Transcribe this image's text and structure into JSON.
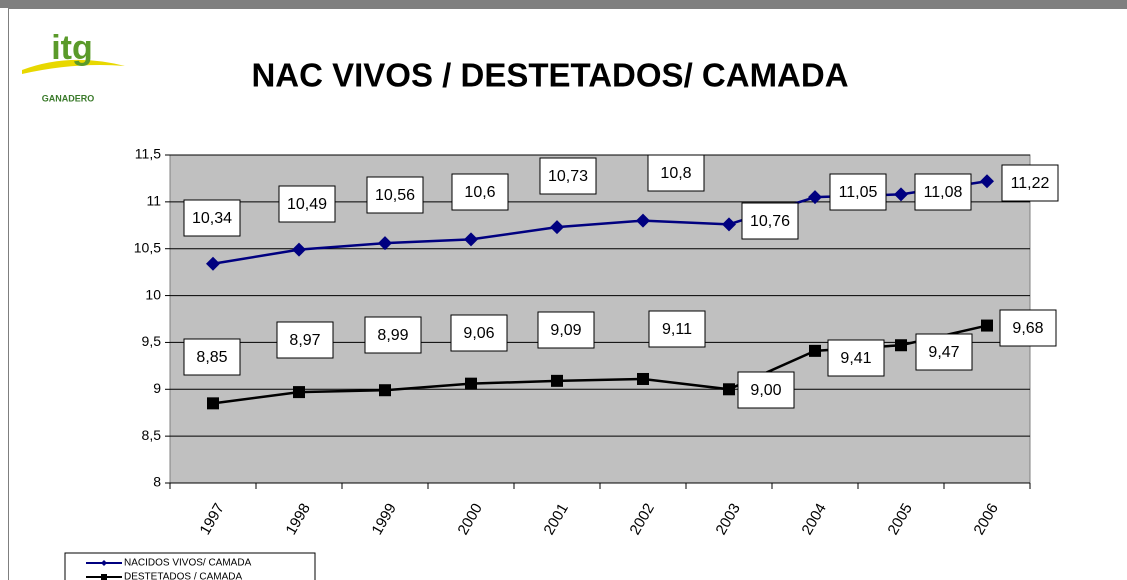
{
  "logo": {
    "text": "itg",
    "subtext": "GANADERO"
  },
  "chart_data": {
    "type": "line",
    "title": "NAC VIVOS / DESTETADOS/ CAMADA",
    "categories": [
      "1997",
      "1998",
      "1999",
      "2000",
      "2001",
      "2002",
      "2003",
      "2004",
      "2005",
      "2006"
    ],
    "series": [
      {
        "name": "NACIDOS VIVOS/ CAMADA",
        "color": "#000080",
        "marker": "diamond",
        "values": [
          10.34,
          10.49,
          10.56,
          10.6,
          10.73,
          10.8,
          10.76,
          11.05,
          11.08,
          11.22
        ],
        "value_labels": [
          "10,34",
          "10,49",
          "10,56",
          "10,6",
          "10,73",
          "10,8",
          "10,76",
          "11,05",
          "11,08",
          "11,22"
        ]
      },
      {
        "name": "DESTETADOS / CAMADA",
        "color": "#000000",
        "marker": "square",
        "values": [
          8.85,
          8.97,
          8.99,
          9.06,
          9.09,
          9.11,
          9.0,
          9.41,
          9.47,
          9.68
        ],
        "value_labels": [
          "8,85",
          "8,97",
          "8,99",
          "9,06",
          "9,09",
          "9,11",
          "9,00",
          "9,41",
          "9,47",
          "9,68"
        ]
      }
    ],
    "ylim": [
      8,
      11.5
    ],
    "yticks": [
      8,
      {
        "value": 8.5,
        "label": "8,5"
      },
      9,
      {
        "value": 9.5,
        "label": "9,5"
      },
      10,
      {
        "value": 10.5,
        "label": "10,5"
      },
      11,
      {
        "value": 11.5,
        "label": "11,5"
      }
    ],
    "grid": true,
    "plot_background": "#c0c0c0",
    "legend": "bottom-left"
  }
}
